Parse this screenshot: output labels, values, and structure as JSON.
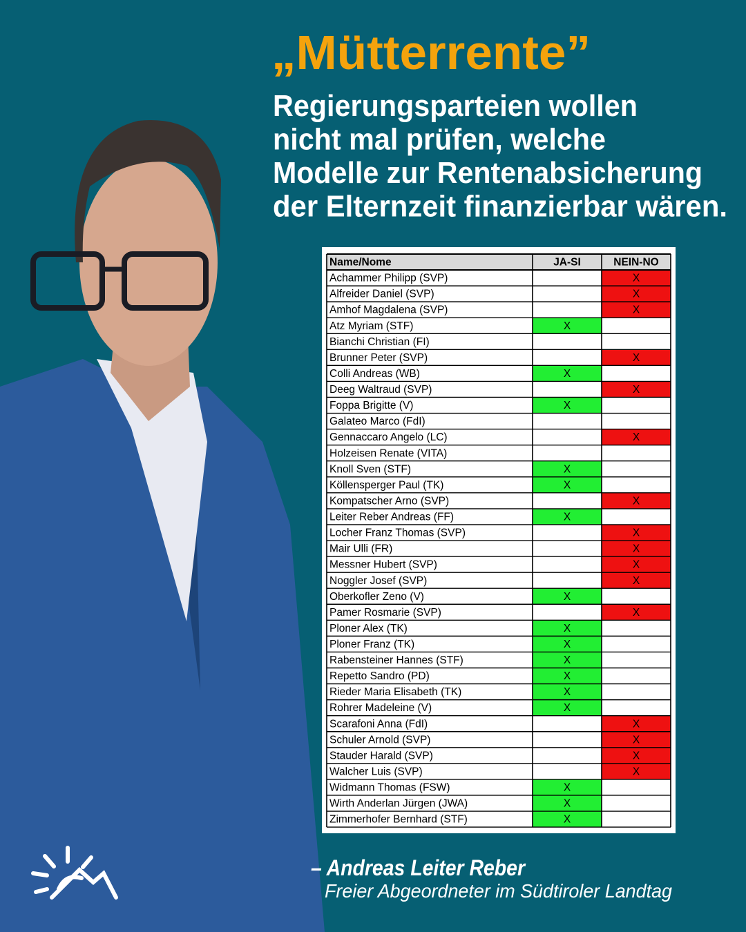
{
  "header": {
    "title": "„Mütterrente”",
    "subtitle": [
      "Regierungsparteien wollen",
      "nicht mal prüfen, welche",
      "Modelle zur Rentenabsicherung",
      "der Elternzeit finanzierbar wären."
    ]
  },
  "table": {
    "columns": [
      "Name/Nome",
      "JA-SI",
      "NEIN-NO"
    ],
    "rows": [
      [
        "Achammer Philipp (SVP)",
        null,
        "X"
      ],
      [
        "Alfreider Daniel (SVP)",
        null,
        "X"
      ],
      [
        "Amhof Magdalena (SVP)",
        null,
        "X"
      ],
      [
        "Atz Myriam (STF)",
        "X",
        null
      ],
      [
        "Bianchi Christian (FI)",
        null,
        null
      ],
      [
        "Brunner Peter (SVP)",
        null,
        "X"
      ],
      [
        "Colli Andreas (WB)",
        "X",
        null
      ],
      [
        "Deeg Waltraud (SVP)",
        null,
        "X"
      ],
      [
        "Foppa Brigitte (V)",
        "X",
        null
      ],
      [
        "Galateo Marco (FdI)",
        null,
        null
      ],
      [
        "Gennaccaro Angelo (LC)",
        null,
        "X"
      ],
      [
        "Holzeisen Renate (VITA)",
        null,
        null
      ],
      [
        "Knoll Sven (STF)",
        "X",
        null
      ],
      [
        "Köllensperger Paul (TK)",
        "X",
        null
      ],
      [
        "Kompatscher Arno (SVP)",
        null,
        "X"
      ],
      [
        "Leiter Reber Andreas (FF)",
        "X",
        null
      ],
      [
        "Locher Franz Thomas (SVP)",
        null,
        "X"
      ],
      [
        "Mair Ulli (FR)",
        null,
        "X"
      ],
      [
        "Messner Hubert (SVP)",
        null,
        "X"
      ],
      [
        "Noggler Josef (SVP)",
        null,
        "X"
      ],
      [
        "Oberkofler Zeno (V)",
        "X",
        null
      ],
      [
        "Pamer Rosmarie (SVP)",
        null,
        "X"
      ],
      [
        "Ploner Alex (TK)",
        "X",
        null
      ],
      [
        "Ploner Franz (TK)",
        "X",
        null
      ],
      [
        "Rabensteiner Hannes (STF)",
        "X",
        null
      ],
      [
        "Repetto Sandro (PD)",
        "X",
        null
      ],
      [
        "Rieder Maria Elisabeth (TK)",
        "X",
        null
      ],
      [
        "Rohrer Madeleine (V)",
        "X",
        null
      ],
      [
        "Scarafoni Anna (FdI)",
        null,
        "X"
      ],
      [
        "Schuler Arnold (SVP)",
        null,
        "X"
      ],
      [
        "Stauder Harald (SVP)",
        null,
        "X"
      ],
      [
        "Walcher Luis (SVP)",
        null,
        "X"
      ],
      [
        "Widmann Thomas (FSW)",
        "X",
        null
      ],
      [
        "Wirth Anderlan Jürgen (JWA)",
        "X",
        null
      ],
      [
        "Zimmerhofer Bernhard (STF)",
        "X",
        null
      ]
    ]
  },
  "quote": {
    "author": "– Andreas Leiter Reber",
    "role": "Freier Abgeordneter im Südtiroler Landtag"
  }
}
